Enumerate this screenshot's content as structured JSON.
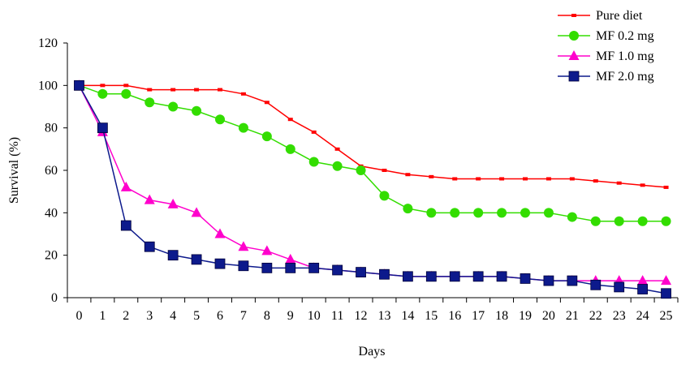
{
  "chart_data": {
    "type": "line",
    "title": "",
    "xlabel": "Days",
    "ylabel": "Survival (%)",
    "ylim": [
      0,
      120
    ],
    "yticks": [
      "0",
      "20",
      "40",
      "60",
      "80",
      "100",
      "120"
    ],
    "x": [
      0,
      1,
      2,
      3,
      4,
      5,
      6,
      7,
      8,
      9,
      10,
      11,
      12,
      13,
      14,
      15,
      16,
      17,
      18,
      19,
      20,
      21,
      22,
      23,
      24,
      25
    ],
    "xticks": [
      "0",
      "1",
      "2",
      "3",
      "4",
      "5",
      "6",
      "7",
      "8",
      "9",
      "10",
      "11",
      "12",
      "13",
      "14",
      "15",
      "16",
      "17",
      "18",
      "19",
      "20",
      "21",
      "22",
      "23",
      "24",
      "25"
    ],
    "grid": false,
    "legend_position": "top-right",
    "series": [
      {
        "name": "Pure diet",
        "color": "#ff0000",
        "marker": "dash",
        "values": [
          100,
          100,
          100,
          98,
          98,
          98,
          98,
          96,
          92,
          84,
          78,
          70,
          62,
          60,
          58,
          57,
          56,
          56,
          56,
          56,
          56,
          56,
          55,
          54,
          53,
          52
        ]
      },
      {
        "name": "MF 0.2 mg",
        "color": "#33dd00",
        "marker": "circle",
        "values": [
          100,
          96,
          96,
          92,
          90,
          88,
          84,
          80,
          76,
          70,
          64,
          62,
          60,
          48,
          42,
          40,
          40,
          40,
          40,
          40,
          40,
          38,
          36,
          36,
          36,
          36
        ]
      },
      {
        "name": "MF 1.0 mg",
        "color": "#ff00cc",
        "marker": "triangle",
        "values": [
          100,
          78,
          52,
          46,
          44,
          40,
          30,
          24,
          22,
          18,
          14,
          13,
          12,
          11,
          10,
          10,
          10,
          10,
          10,
          9,
          8,
          8,
          8,
          8,
          8,
          8
        ]
      },
      {
        "name": "MF 2.0 mg",
        "color": "#0d1a8c",
        "marker": "square",
        "values": [
          100,
          80,
          34,
          24,
          20,
          18,
          16,
          15,
          14,
          14,
          14,
          13,
          12,
          11,
          10,
          10,
          10,
          10,
          10,
          9,
          8,
          8,
          6,
          5,
          4,
          2
        ]
      }
    ]
  }
}
